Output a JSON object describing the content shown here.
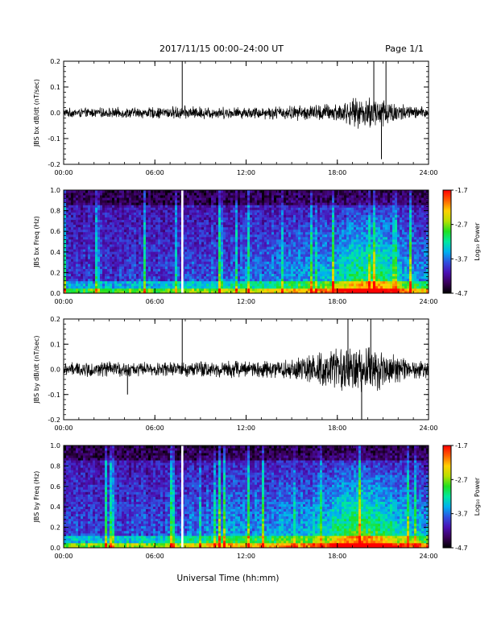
{
  "header": {
    "title": "2017/11/15  00:00–24:00 UT",
    "page": "Page 1/1"
  },
  "xlabel": "Universal Time (hh:mm)",
  "colorbar": {
    "title": "Log₁₀ Power",
    "ticks": [
      "-1.7",
      "-2.7",
      "-3.7",
      "-4.7"
    ],
    "range": [
      -4.7,
      -1.7
    ],
    "colors": [
      "#000000",
      "#3a005a",
      "#4b10b4",
      "#3050e0",
      "#00b0f0",
      "#00e8a0",
      "#20e020",
      "#b8e000",
      "#ffd000",
      "#ff6000",
      "#ff0000"
    ]
  },
  "chart_data": [
    {
      "type": "line",
      "name": "bx-waveform",
      "ylabel": "JBS bx dB/dt (nT/sec)",
      "xticks": [
        "00:00",
        "06:00",
        "12:00",
        "18:00",
        "24:00"
      ],
      "yticks": [
        "0.2",
        "0.1",
        "0.0",
        "-0.1",
        "-0.2"
      ],
      "xlim": [
        0,
        24
      ],
      "ylim": [
        -0.2,
        0.2
      ],
      "envelope": {
        "hours": [
          0,
          3,
          6,
          7.8,
          9,
          12,
          14,
          16,
          17,
          18,
          19,
          20,
          20.5,
          21,
          22,
          23,
          24
        ],
        "amplitude": [
          0.02,
          0.022,
          0.025,
          0.03,
          0.028,
          0.025,
          0.03,
          0.035,
          0.04,
          0.045,
          0.06,
          0.07,
          0.08,
          0.07,
          0.045,
          0.03,
          0.025
        ]
      },
      "spikes": [
        {
          "hour": 7.8,
          "value": 0.2
        },
        {
          "hour": 20.4,
          "value": 0.2
        },
        {
          "hour": 21.2,
          "value": 0.2
        },
        {
          "hour": 20.9,
          "value": -0.18
        }
      ]
    },
    {
      "type": "heatmap",
      "name": "bx-spectrogram",
      "ylabel": "JBS bx Freq (Hz)",
      "xticks": [
        "00:00",
        "06:00",
        "12:00",
        "18:00",
        "24:00"
      ],
      "yticks": [
        "1.0",
        "0.8",
        "0.6",
        "0.4",
        "0.2",
        "0.0"
      ],
      "xlim": [
        0,
        24
      ],
      "ylim": [
        0.0,
        1.0
      ],
      "zlim": [
        -4.7,
        -1.7
      ],
      "gap_hour": 7.8,
      "activity": {
        "hours": [
          0,
          6,
          7.8,
          9,
          12,
          15,
          17,
          18,
          19,
          20,
          21,
          22,
          24
        ],
        "level": [
          0.1,
          0.15,
          0.2,
          0.2,
          0.25,
          0.35,
          0.45,
          0.6,
          0.7,
          0.8,
          0.75,
          0.5,
          0.35
        ]
      }
    },
    {
      "type": "line",
      "name": "by-waveform",
      "ylabel": "JBS by dB/dt (nT/sec)",
      "xticks": [
        "00:00",
        "06:00",
        "12:00",
        "18:00",
        "24:00"
      ],
      "yticks": [
        "0.2",
        "0.1",
        "0.0",
        "-0.1",
        "-0.2"
      ],
      "xlim": [
        0,
        24
      ],
      "ylim": [
        -0.2,
        0.2
      ],
      "envelope": {
        "hours": [
          0,
          3,
          6,
          7.8,
          9,
          12,
          14,
          15,
          16,
          17,
          18,
          19,
          20,
          21,
          22,
          23,
          24
        ],
        "amplitude": [
          0.03,
          0.035,
          0.03,
          0.035,
          0.04,
          0.04,
          0.045,
          0.05,
          0.06,
          0.075,
          0.09,
          0.1,
          0.1,
          0.09,
          0.06,
          0.045,
          0.035
        ]
      },
      "spikes": [
        {
          "hour": 7.8,
          "value": 0.2
        },
        {
          "hour": 18.7,
          "value": 0.2
        },
        {
          "hour": 20.2,
          "value": 0.2
        },
        {
          "hour": 19.6,
          "value": -0.2
        },
        {
          "hour": 4.2,
          "value": -0.1
        }
      ]
    },
    {
      "type": "heatmap",
      "name": "by-spectrogram",
      "ylabel": "JBS by Freq (Hz)",
      "xticks": [
        "00:00",
        "06:00",
        "12:00",
        "18:00",
        "24:00"
      ],
      "yticks": [
        "1.0",
        "0.8",
        "0.6",
        "0.4",
        "0.2",
        "0.0"
      ],
      "xlim": [
        0,
        24
      ],
      "ylim": [
        0.0,
        1.0
      ],
      "zlim": [
        -4.7,
        -1.7
      ],
      "gap_hour": 7.8,
      "activity": {
        "hours": [
          0,
          6,
          7.8,
          9,
          10,
          12,
          15,
          17,
          18,
          19,
          20,
          21,
          22,
          24
        ],
        "level": [
          0.15,
          0.2,
          0.25,
          0.3,
          0.4,
          0.35,
          0.45,
          0.55,
          0.7,
          0.8,
          0.85,
          0.8,
          0.6,
          0.45
        ]
      }
    }
  ]
}
